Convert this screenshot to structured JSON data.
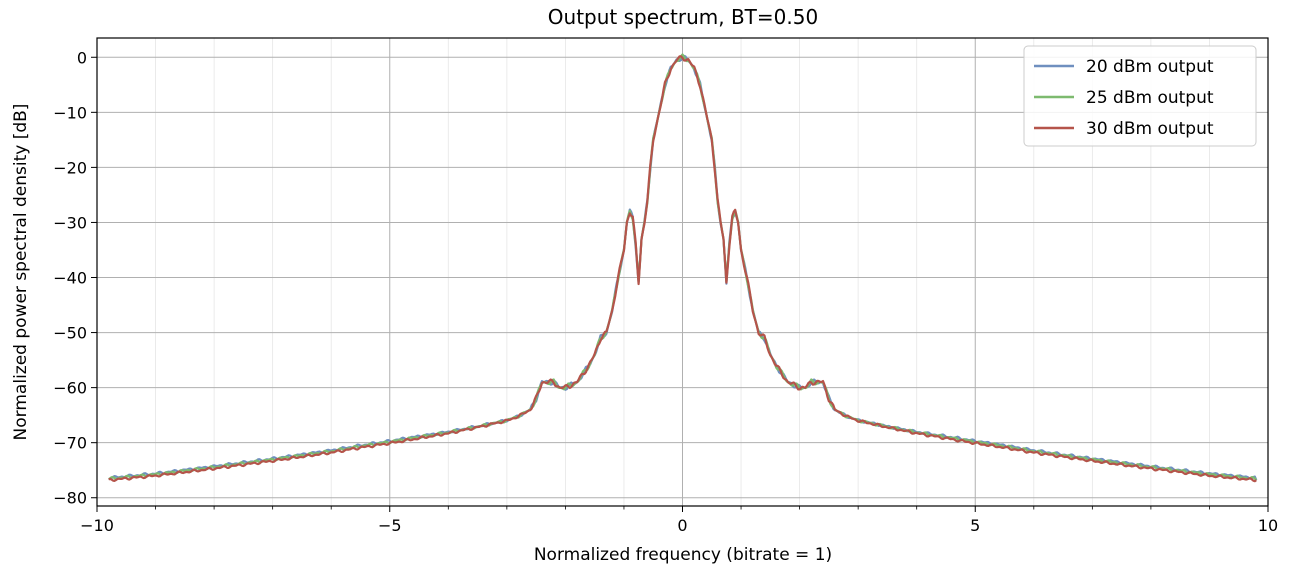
{
  "chart_data": {
    "type": "line",
    "title": "Output spectrum, BT=0.50",
    "xlabel": "Normalized frequency (bitrate = 1)",
    "ylabel": "Normalized power spectral density [dB]",
    "xlim": [
      -10,
      10
    ],
    "ylim": [
      -81.5,
      3.5
    ],
    "xticks": [
      -10,
      -5,
      0,
      5,
      10
    ],
    "xtick_labels": [
      "−10",
      "−5",
      "0",
      "5",
      "10"
    ],
    "yticks": [
      0,
      -10,
      -20,
      -30,
      -40,
      -50,
      -60,
      -70,
      -80
    ],
    "ytick_labels": [
      "0",
      "−10",
      "−20",
      "−30",
      "−40",
      "−50",
      "−60",
      "−70",
      "−80"
    ],
    "grid": true,
    "minor_grid": true,
    "legend_position": "top-right",
    "x": [
      0,
      0.1,
      0.2,
      0.3,
      0.4,
      0.5,
      0.55,
      0.6,
      0.65,
      0.7,
      0.75,
      0.8,
      0.85,
      0.9,
      0.95,
      1.0,
      1.1,
      1.2,
      1.3,
      1.4,
      1.5,
      1.6,
      1.8,
      2.0,
      2.1,
      2.2,
      2.3,
      2.4,
      2.5,
      2.6,
      2.8,
      3.0,
      3.5,
      4.0,
      4.5,
      5.0,
      5.5,
      6.0,
      7.0,
      8.0,
      9.0,
      9.8
    ],
    "series": [
      {
        "name": "20 dBm output",
        "color": "#6f8fbf",
        "offset_far": 0.4,
        "half_values": [
          0,
          -0.5,
          -2,
          -5,
          -10,
          -15,
          -20,
          -26,
          -30,
          -33,
          -41,
          -34,
          -29,
          -28,
          -30,
          -35,
          -40,
          -46,
          -50,
          -51,
          -54,
          -56,
          -59,
          -60,
          -60,
          -59,
          -59,
          -59,
          -62,
          -64,
          -65.2,
          -66,
          -67.2,
          -68.3,
          -69.2,
          -70.1,
          -70.9,
          -71.8,
          -73.3,
          -74.7,
          -76,
          -76.8
        ]
      },
      {
        "name": "25 dBm output",
        "color": "#7dba6f",
        "offset_far": 0.25,
        "half_values": [
          0,
          -0.5,
          -2,
          -5,
          -10,
          -15,
          -20,
          -26,
          -30,
          -33,
          -41,
          -34,
          -29,
          -28,
          -30,
          -35,
          -40,
          -46,
          -50,
          -51,
          -54,
          -56,
          -59,
          -60,
          -60,
          -59,
          -59,
          -59,
          -62,
          -64,
          -65.2,
          -66,
          -67.2,
          -68.3,
          -69.2,
          -70.1,
          -70.9,
          -71.8,
          -73.3,
          -74.7,
          -76,
          -76.8
        ]
      },
      {
        "name": "30 dBm output",
        "color": "#b5544a",
        "offset_far": 0,
        "half_values": [
          0,
          -0.5,
          -2,
          -5,
          -10,
          -15,
          -20,
          -26,
          -30,
          -33,
          -41,
          -34,
          -29,
          -28,
          -30,
          -35,
          -40,
          -46,
          -50,
          -51,
          -54,
          -56,
          -59,
          -60,
          -60,
          -59,
          -59,
          -59,
          -62,
          -64,
          -65.2,
          -66,
          -67.2,
          -68.3,
          -69.2,
          -70.1,
          -70.9,
          -71.8,
          -73.3,
          -74.7,
          -76,
          -76.8
        ]
      }
    ]
  }
}
